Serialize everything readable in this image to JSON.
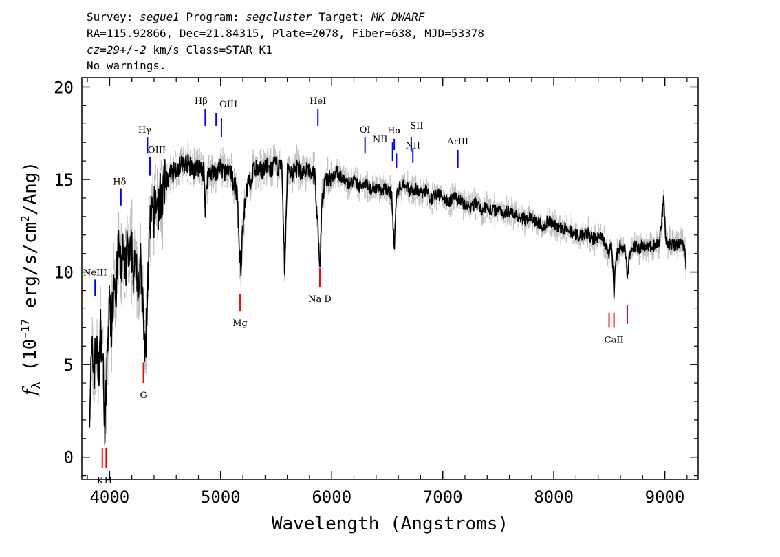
{
  "header": {
    "survey_label": "Survey:",
    "survey": "segue1",
    "program_label": "Program:",
    "program": "segcluster",
    "target_label": "Target:",
    "target": "MK_DWARF",
    "line2": "RA=115.92866, Dec=21.84315, Plate=2078, Fiber=638, MJD=53378",
    "redshift": "cz=29+/-2",
    "redshift_rest": " km/s Class=STAR K1",
    "warnings": "No warnings."
  },
  "chart_data": {
    "type": "line",
    "xlabel": "Wavelength (Angstroms)",
    "ylabel_main": "f",
    "ylabel_sub": "λ",
    "ylabel_text": " (10",
    "ylabel_exp": "−17",
    "ylabel_unit": " erg/s/cm",
    "ylabel_unit_exp": "2",
    "ylabel_end": "/Ang)",
    "xlim": [
      3750,
      9300
    ],
    "ylim": [
      -1.2,
      20.5
    ],
    "xticks": [
      4000,
      5000,
      6000,
      7000,
      8000,
      9000
    ],
    "yticks": [
      0,
      5,
      10,
      15,
      20
    ],
    "series": [
      {
        "role": "flux",
        "color": "#000000",
        "x": [
          3820,
          3840,
          3860,
          3880,
          3900,
          3920,
          3940,
          3960,
          3980,
          4000,
          4020,
          4040,
          4060,
          4080,
          4100,
          4120,
          4140,
          4160,
          4180,
          4200,
          4220,
          4240,
          4260,
          4280,
          4300,
          4310,
          4320,
          4330,
          4340,
          4360,
          4380,
          4400,
          4420,
          4440,
          4460,
          4480,
          4500,
          4550,
          4600,
          4650,
          4700,
          4750,
          4800,
          4850,
          4861,
          4880,
          4900,
          4950,
          5000,
          5050,
          5100,
          5150,
          5170,
          5183,
          5200,
          5250,
          5270,
          5300,
          5350,
          5400,
          5450,
          5500,
          5550,
          5577,
          5600,
          5650,
          5700,
          5750,
          5800,
          5850,
          5880,
          5893,
          5910,
          5950,
          6000,
          6050,
          6100,
          6150,
          6200,
          6250,
          6300,
          6350,
          6400,
          6450,
          6500,
          6540,
          6563,
          6580,
          6600,
          6650,
          6700,
          6750,
          6800,
          6850,
          6900,
          6950,
          7000,
          7050,
          7100,
          7150,
          7200,
          7250,
          7300,
          7350,
          7400,
          7450,
          7500,
          7550,
          7600,
          7650,
          7700,
          7750,
          7800,
          7850,
          7900,
          7950,
          8000,
          8050,
          8100,
          8150,
          8200,
          8250,
          8300,
          8350,
          8400,
          8450,
          8498,
          8520,
          8542,
          8560,
          8600,
          8640,
          8662,
          8680,
          8720,
          8760,
          8800,
          8850,
          8900,
          8950,
          8990,
          9010,
          9050,
          9100,
          9150,
          9180,
          9190
        ],
        "y": [
          3.0,
          5.5,
          4.8,
          6.0,
          4.5,
          7.0,
          5.0,
          1.5,
          5.5,
          8.5,
          7.0,
          10.2,
          9.0,
          11.5,
          10.0,
          11.0,
          9.8,
          11.3,
          10.5,
          11.2,
          9.6,
          10.8,
          9.5,
          10.3,
          8.0,
          6.5,
          5.2,
          7.0,
          8.8,
          12.0,
          12.8,
          13.2,
          13.8,
          13.5,
          14.2,
          14.0,
          14.8,
          15.3,
          15.6,
          15.8,
          15.9,
          15.5,
          15.6,
          15.4,
          13.5,
          15.1,
          15.5,
          15.3,
          15.6,
          15.4,
          15.2,
          14.2,
          11.0,
          10.2,
          12.5,
          15.2,
          14.8,
          15.6,
          15.4,
          15.7,
          15.5,
          15.8,
          15.6,
          10.0,
          15.5,
          15.4,
          15.6,
          15.3,
          15.5,
          15.1,
          12.0,
          9.9,
          13.8,
          15.0,
          15.2,
          15.4,
          15.0,
          14.8,
          14.9,
          14.6,
          14.9,
          14.5,
          14.6,
          14.4,
          14.5,
          14.2,
          11.2,
          13.8,
          14.5,
          14.8,
          14.4,
          14.5,
          14.3,
          14.4,
          14.0,
          14.2,
          14.1,
          13.8,
          14.0,
          13.9,
          13.6,
          13.5,
          13.7,
          13.4,
          13.5,
          13.3,
          13.4,
          13.2,
          13.3,
          13.1,
          13.0,
          12.8,
          12.9,
          12.7,
          12.5,
          12.8,
          12.6,
          12.4,
          12.3,
          12.2,
          12.0,
          11.9,
          12.1,
          11.8,
          11.9,
          11.7,
          11.0,
          11.6,
          8.9,
          10.8,
          11.5,
          11.3,
          9.8,
          11.0,
          11.4,
          11.2,
          11.5,
          11.3,
          11.4,
          11.6,
          13.9,
          11.7,
          11.5,
          11.4,
          11.6,
          11.2,
          10.4
        ]
      },
      {
        "role": "error",
        "color": "#c0c0c0"
      }
    ],
    "lines": [
      {
        "name": "NeIII",
        "x": 3869,
        "y1": 8.7,
        "y2": 9.6,
        "color": "#0000ff",
        "label_dx": 0,
        "label_dy": -6
      },
      {
        "name": "Hδ",
        "x": 4102,
        "y1": 13.6,
        "y2": 14.5,
        "color": "#0000ff",
        "label_dx": -2,
        "label_dy": -6
      },
      {
        "name": "Hγ",
        "x": 4341,
        "y1": 16.4,
        "y2": 17.3,
        "color": "#0000ff",
        "label_dx": -4,
        "label_dy": -6
      },
      {
        "name": "OIII",
        "x": 4363,
        "y1": 15.2,
        "y2": 16.2,
        "color": "#0000ff",
        "label_dx": 10,
        "label_dy": -6
      },
      {
        "name": "Hβ",
        "x": 4861,
        "y1": 17.9,
        "y2": 18.8,
        "color": "#0000ff",
        "label_dx": -6,
        "label_dy": -8
      },
      {
        "name": "OIII",
        "x": 4959,
        "y1": 17.9,
        "y2": 18.6,
        "color": "#0000ff",
        "label_dx": 18,
        "label_dy": -8
      },
      {
        "name": "",
        "x": 5007,
        "y1": 17.3,
        "y2": 18.3,
        "color": "#0000ff",
        "label_dx": 0,
        "label_dy": 0
      },
      {
        "name": "HeI",
        "x": 5876,
        "y1": 17.9,
        "y2": 18.8,
        "color": "#0000ff",
        "label_dx": 0,
        "label_dy": -8
      },
      {
        "name": "OI",
        "x": 6300,
        "y1": 16.4,
        "y2": 17.3,
        "color": "#0000ff",
        "label_dx": 0,
        "label_dy": -6
      },
      {
        "name": "NII",
        "x": 6548,
        "y1": 16.0,
        "y2": 17.0,
        "color": "#0000ff",
        "label_dx": -18,
        "label_dy": 0
      },
      {
        "name": "Hα",
        "x": 6563,
        "y1": 16.6,
        "y2": 17.2,
        "color": "#0000ff",
        "label_dx": 0,
        "label_dy": -8
      },
      {
        "name": "",
        "x": 6583,
        "y1": 15.6,
        "y2": 16.4,
        "color": "#0000ff",
        "label_dx": 0,
        "label_dy": 0
      },
      {
        "name": "SII",
        "x": 6716,
        "y1": 16.5,
        "y2": 17.3,
        "color": "#0000ff",
        "label_dx": 8,
        "label_dy": -12
      },
      {
        "name": "NII",
        "x": 6731,
        "y1": 15.9,
        "y2": 16.7,
        "color": "#0000ff",
        "label_dx": 0,
        "label_dy": 0
      },
      {
        "name": "ArIII",
        "x": 7136,
        "y1": 15.6,
        "y2": 16.6,
        "color": "#0000ff",
        "label_dx": 0,
        "label_dy": -8
      },
      {
        "name": "K",
        "x": 3934,
        "y1": -0.6,
        "y2": 0.5,
        "color": "#ff0000",
        "label_dx": -3,
        "label_dy": 22
      },
      {
        "name": "H",
        "x": 3969,
        "y1": -0.6,
        "y2": 0.5,
        "color": "#ff0000",
        "label_dx": 3,
        "label_dy": 22
      },
      {
        "name": "G",
        "x": 4305,
        "y1": 4.0,
        "y2": 5.1,
        "color": "#ff0000",
        "label_dx": 0,
        "label_dy": 22
      },
      {
        "name": "Mg",
        "x": 5175,
        "y1": 7.9,
        "y2": 8.8,
        "color": "#ff0000",
        "label_dx": 0,
        "label_dy": 22
      },
      {
        "name": "Na D",
        "x": 5893,
        "y1": 9.2,
        "y2": 10.2,
        "color": "#ff0000",
        "label_dx": 0,
        "label_dy": 22
      },
      {
        "name": "",
        "x": 8498,
        "y1": 7.0,
        "y2": 7.8,
        "color": "#ff0000",
        "label_dx": 0,
        "label_dy": 0
      },
      {
        "name": "CaII",
        "x": 8542,
        "y1": 7.0,
        "y2": 7.8,
        "color": "#ff0000",
        "label_dx": 0,
        "label_dy": 22
      },
      {
        "name": "",
        "x": 8662,
        "y1": 7.2,
        "y2": 8.2,
        "color": "#ff0000",
        "label_dx": 0,
        "label_dy": 0
      }
    ]
  }
}
